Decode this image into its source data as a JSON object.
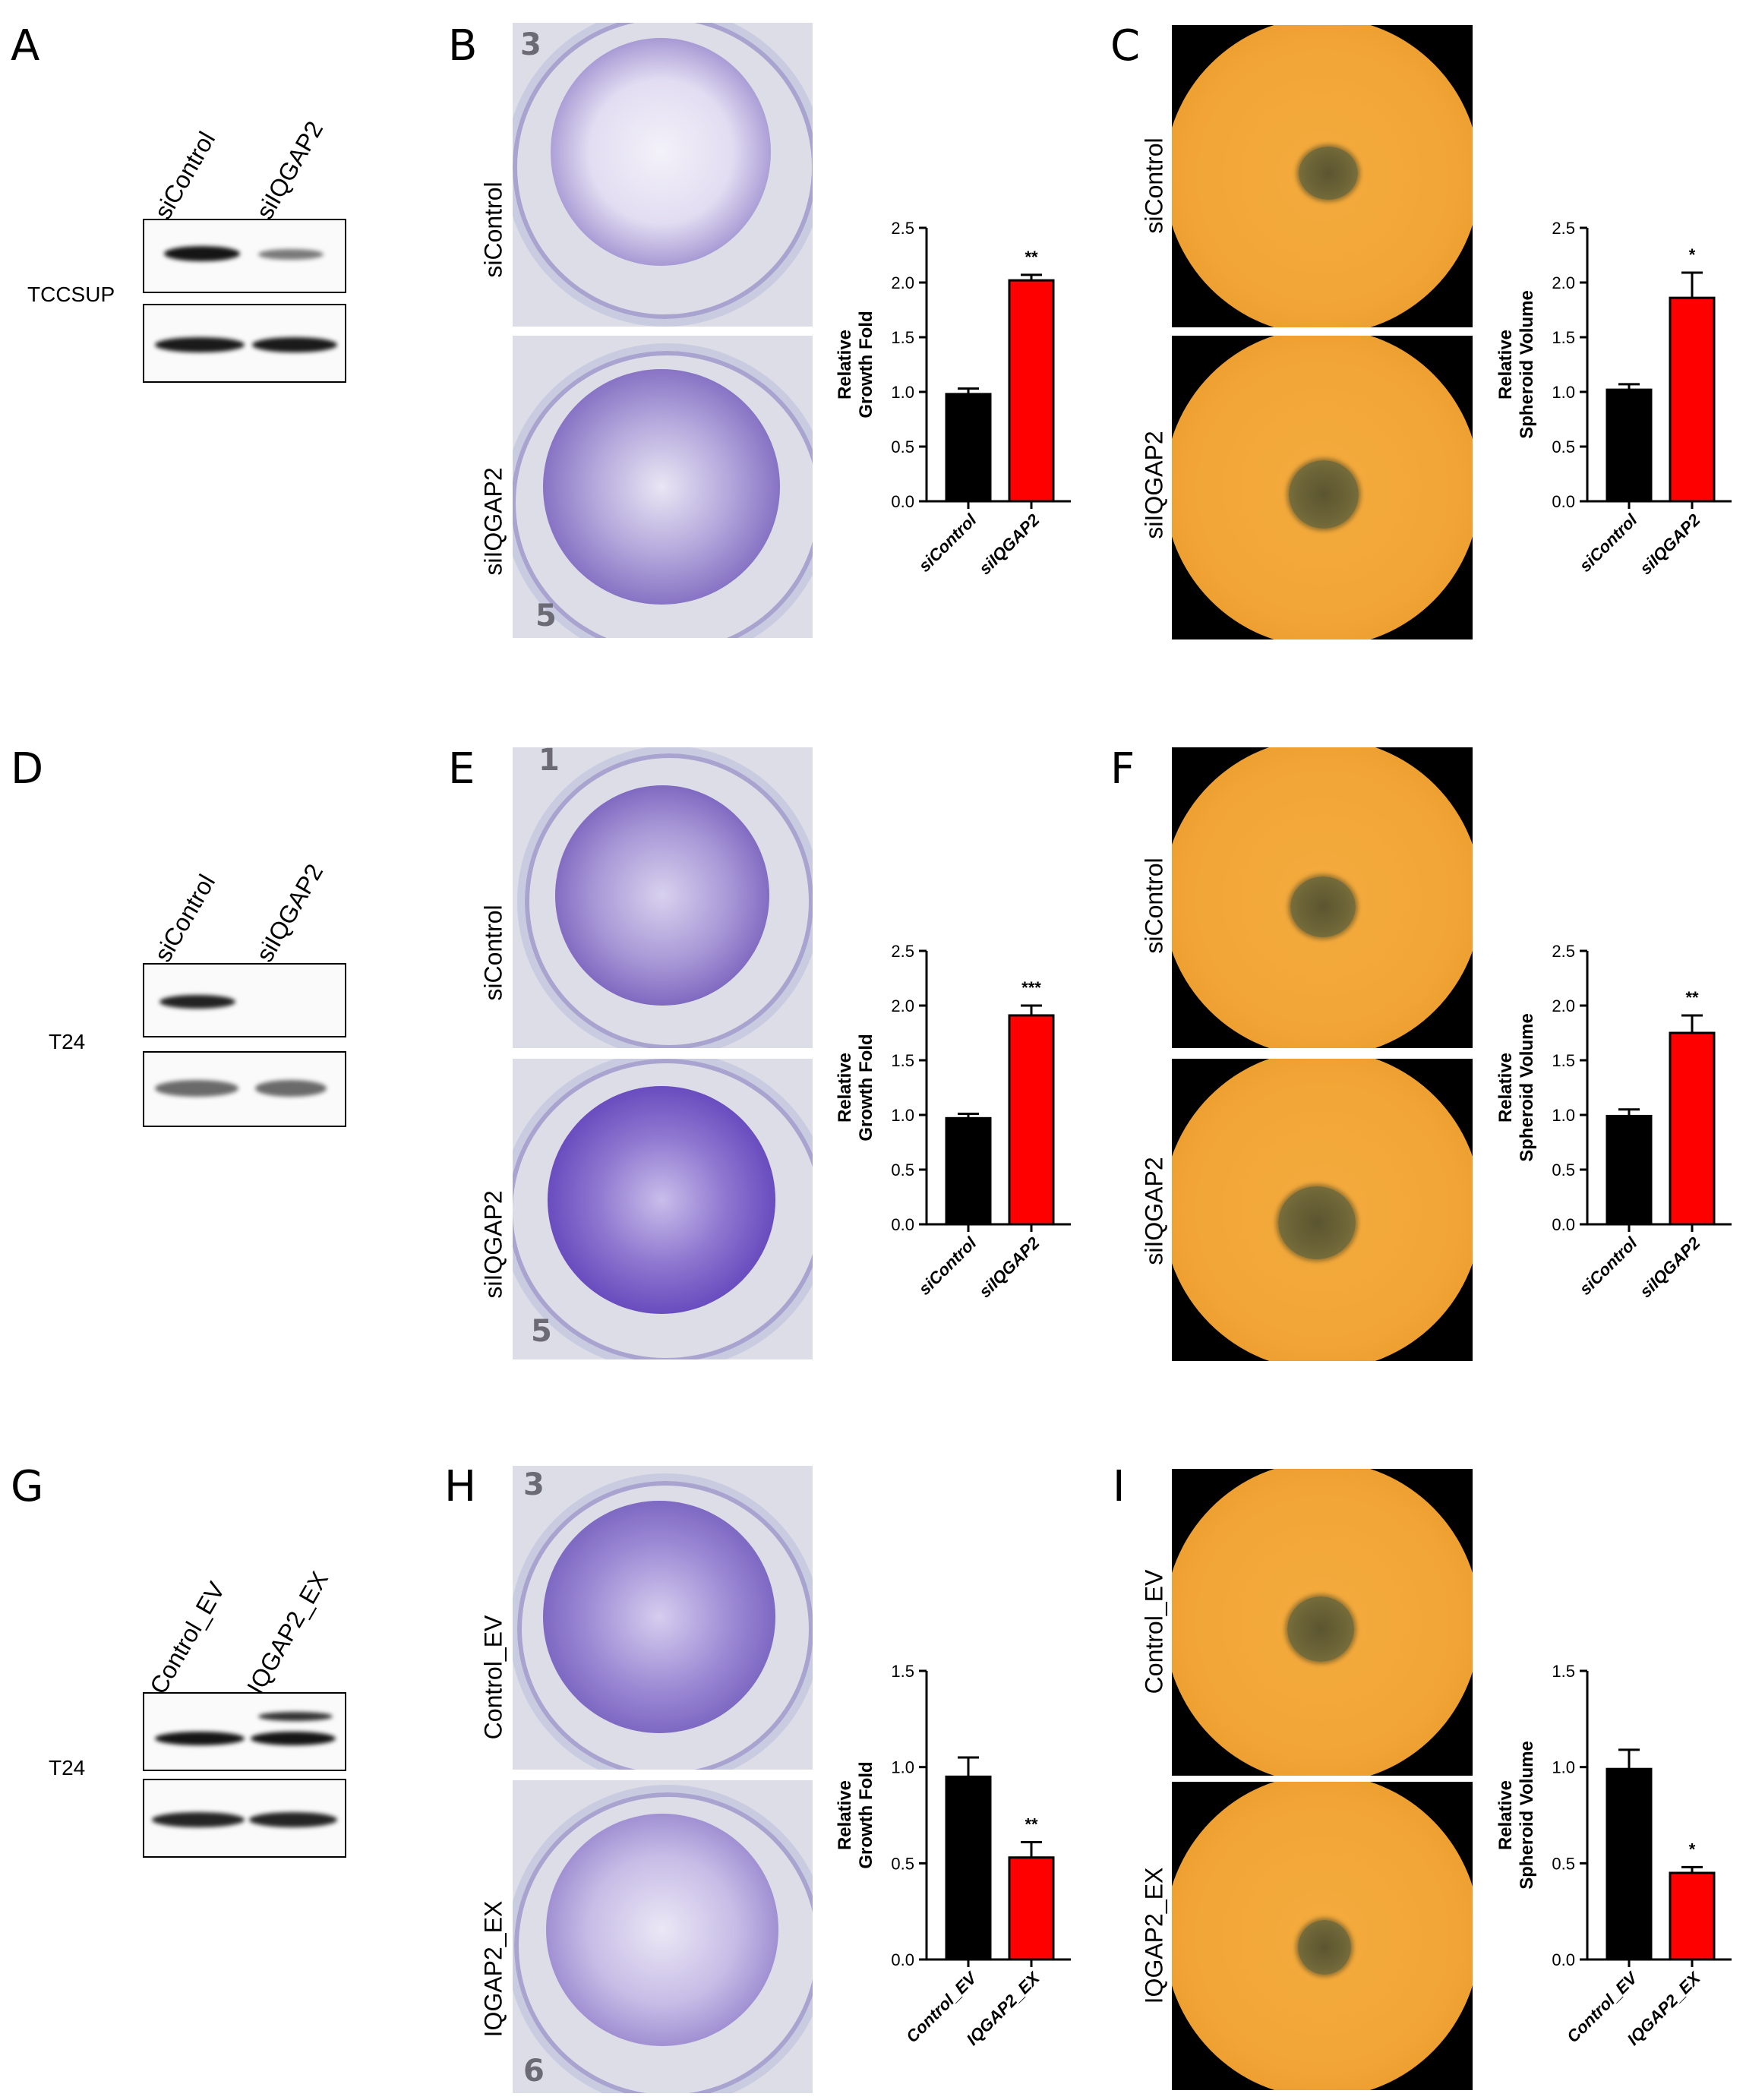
{
  "panels": {
    "A": {
      "letter": "A",
      "lanes": [
        "siControl",
        "siIQGAP2"
      ],
      "cell_line": "TCCSUP"
    },
    "B": {
      "letter": "B",
      "rows": [
        "siControl",
        "siIQGAP2"
      ],
      "plate_numbers": [
        "3",
        "5"
      ]
    },
    "C": {
      "letter": "C",
      "rows": [
        "siControl",
        "siIQGAP2"
      ]
    },
    "D": {
      "letter": "D",
      "lanes": [
        "siControl",
        "siIQGAP2"
      ],
      "cell_line": "T24"
    },
    "E": {
      "letter": "E",
      "rows": [
        "siControl",
        "siIQGAP2"
      ],
      "plate_numbers": [
        "1",
        "5"
      ]
    },
    "F": {
      "letter": "F",
      "rows": [
        "siControl",
        "siIQGAP2"
      ]
    },
    "G": {
      "letter": "G",
      "lanes": [
        "Control_EV",
        "IQGAP2_EX"
      ],
      "cell_line": "T24"
    },
    "H": {
      "letter": "H",
      "rows": [
        "Control_EV",
        "IQGAP2_EX"
      ],
      "plate_numbers": [
        "3",
        "6"
      ]
    },
    "I": {
      "letter": "I",
      "rows": [
        "Control_EV",
        "IQGAP2_EX"
      ]
    }
  },
  "colors": {
    "control_bar": "#000000",
    "treatment_bar": "#ff0000",
    "stain": "#5b3fa6",
    "field": "#f2a536"
  },
  "chart_data": [
    {
      "id": "B",
      "type": "bar",
      "categories": [
        "siControl",
        "siIQGAP2"
      ],
      "values": [
        0.98,
        2.02
      ],
      "errors": [
        0.05,
        0.05
      ],
      "ylabel": "Relative\nGrowth Fold",
      "ylim": [
        0,
        2.5
      ],
      "yticks": [
        "0.0",
        "0.5",
        "1.0",
        "1.5",
        "2.0",
        "2.5"
      ],
      "significance": "**"
    },
    {
      "id": "C",
      "type": "bar",
      "categories": [
        "siControl",
        "siIQGAP2"
      ],
      "values": [
        1.02,
        1.86
      ],
      "errors": [
        0.05,
        0.23
      ],
      "ylabel": "Relative\nSpheroid Volume",
      "ylim": [
        0,
        2.5
      ],
      "yticks": [
        "0.0",
        "0.5",
        "1.0",
        "1.5",
        "2.0",
        "2.5"
      ],
      "significance": "*"
    },
    {
      "id": "E",
      "type": "bar",
      "categories": [
        "siControl",
        "siIQGAP2"
      ],
      "values": [
        0.97,
        1.91
      ],
      "errors": [
        0.04,
        0.09
      ],
      "ylabel": "Relative\nGrowth Fold",
      "ylim": [
        0,
        2.5
      ],
      "yticks": [
        "0.0",
        "0.5",
        "1.0",
        "1.5",
        "2.0",
        "2.5"
      ],
      "significance": "***"
    },
    {
      "id": "F",
      "type": "bar",
      "categories": [
        "siControl",
        "siIQGAP2"
      ],
      "values": [
        0.99,
        1.75
      ],
      "errors": [
        0.06,
        0.16
      ],
      "ylabel": "Relative\nSpheroid Volume",
      "ylim": [
        0,
        2.5
      ],
      "yticks": [
        "0.0",
        "0.5",
        "1.0",
        "1.5",
        "2.0",
        "2.5"
      ],
      "significance": "**"
    },
    {
      "id": "H",
      "type": "bar",
      "categories": [
        "Control_EV",
        "IQGAP2_EX"
      ],
      "values": [
        0.95,
        0.53
      ],
      "errors": [
        0.1,
        0.08
      ],
      "ylabel": "Relative\nGrowth Fold",
      "ylim": [
        0,
        1.5
      ],
      "yticks": [
        "0.0",
        "0.5",
        "1.0",
        "1.5"
      ],
      "significance": "**"
    },
    {
      "id": "I",
      "type": "bar",
      "categories": [
        "Control_EV",
        "IQGAP2_EX"
      ],
      "values": [
        0.99,
        0.45
      ],
      "errors": [
        0.1,
        0.03
      ],
      "ylabel": "Relative\nSpheroid Volume",
      "ylim": [
        0,
        1.5
      ],
      "yticks": [
        "0.0",
        "0.5",
        "1.0",
        "1.5"
      ],
      "significance": "*"
    }
  ]
}
